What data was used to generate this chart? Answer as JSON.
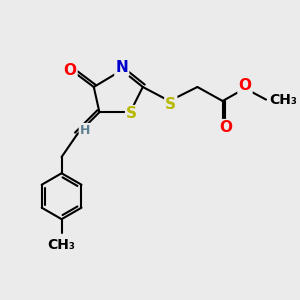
{
  "background_color": "#ebebeb",
  "atom_colors": {
    "S": "#b8b800",
    "N": "#0000cc",
    "O": "#ff0000",
    "C": "#000000",
    "H": "#5f8090"
  },
  "bond_lw": 1.5,
  "font_size_atom": 11,
  "font_size_small": 9
}
